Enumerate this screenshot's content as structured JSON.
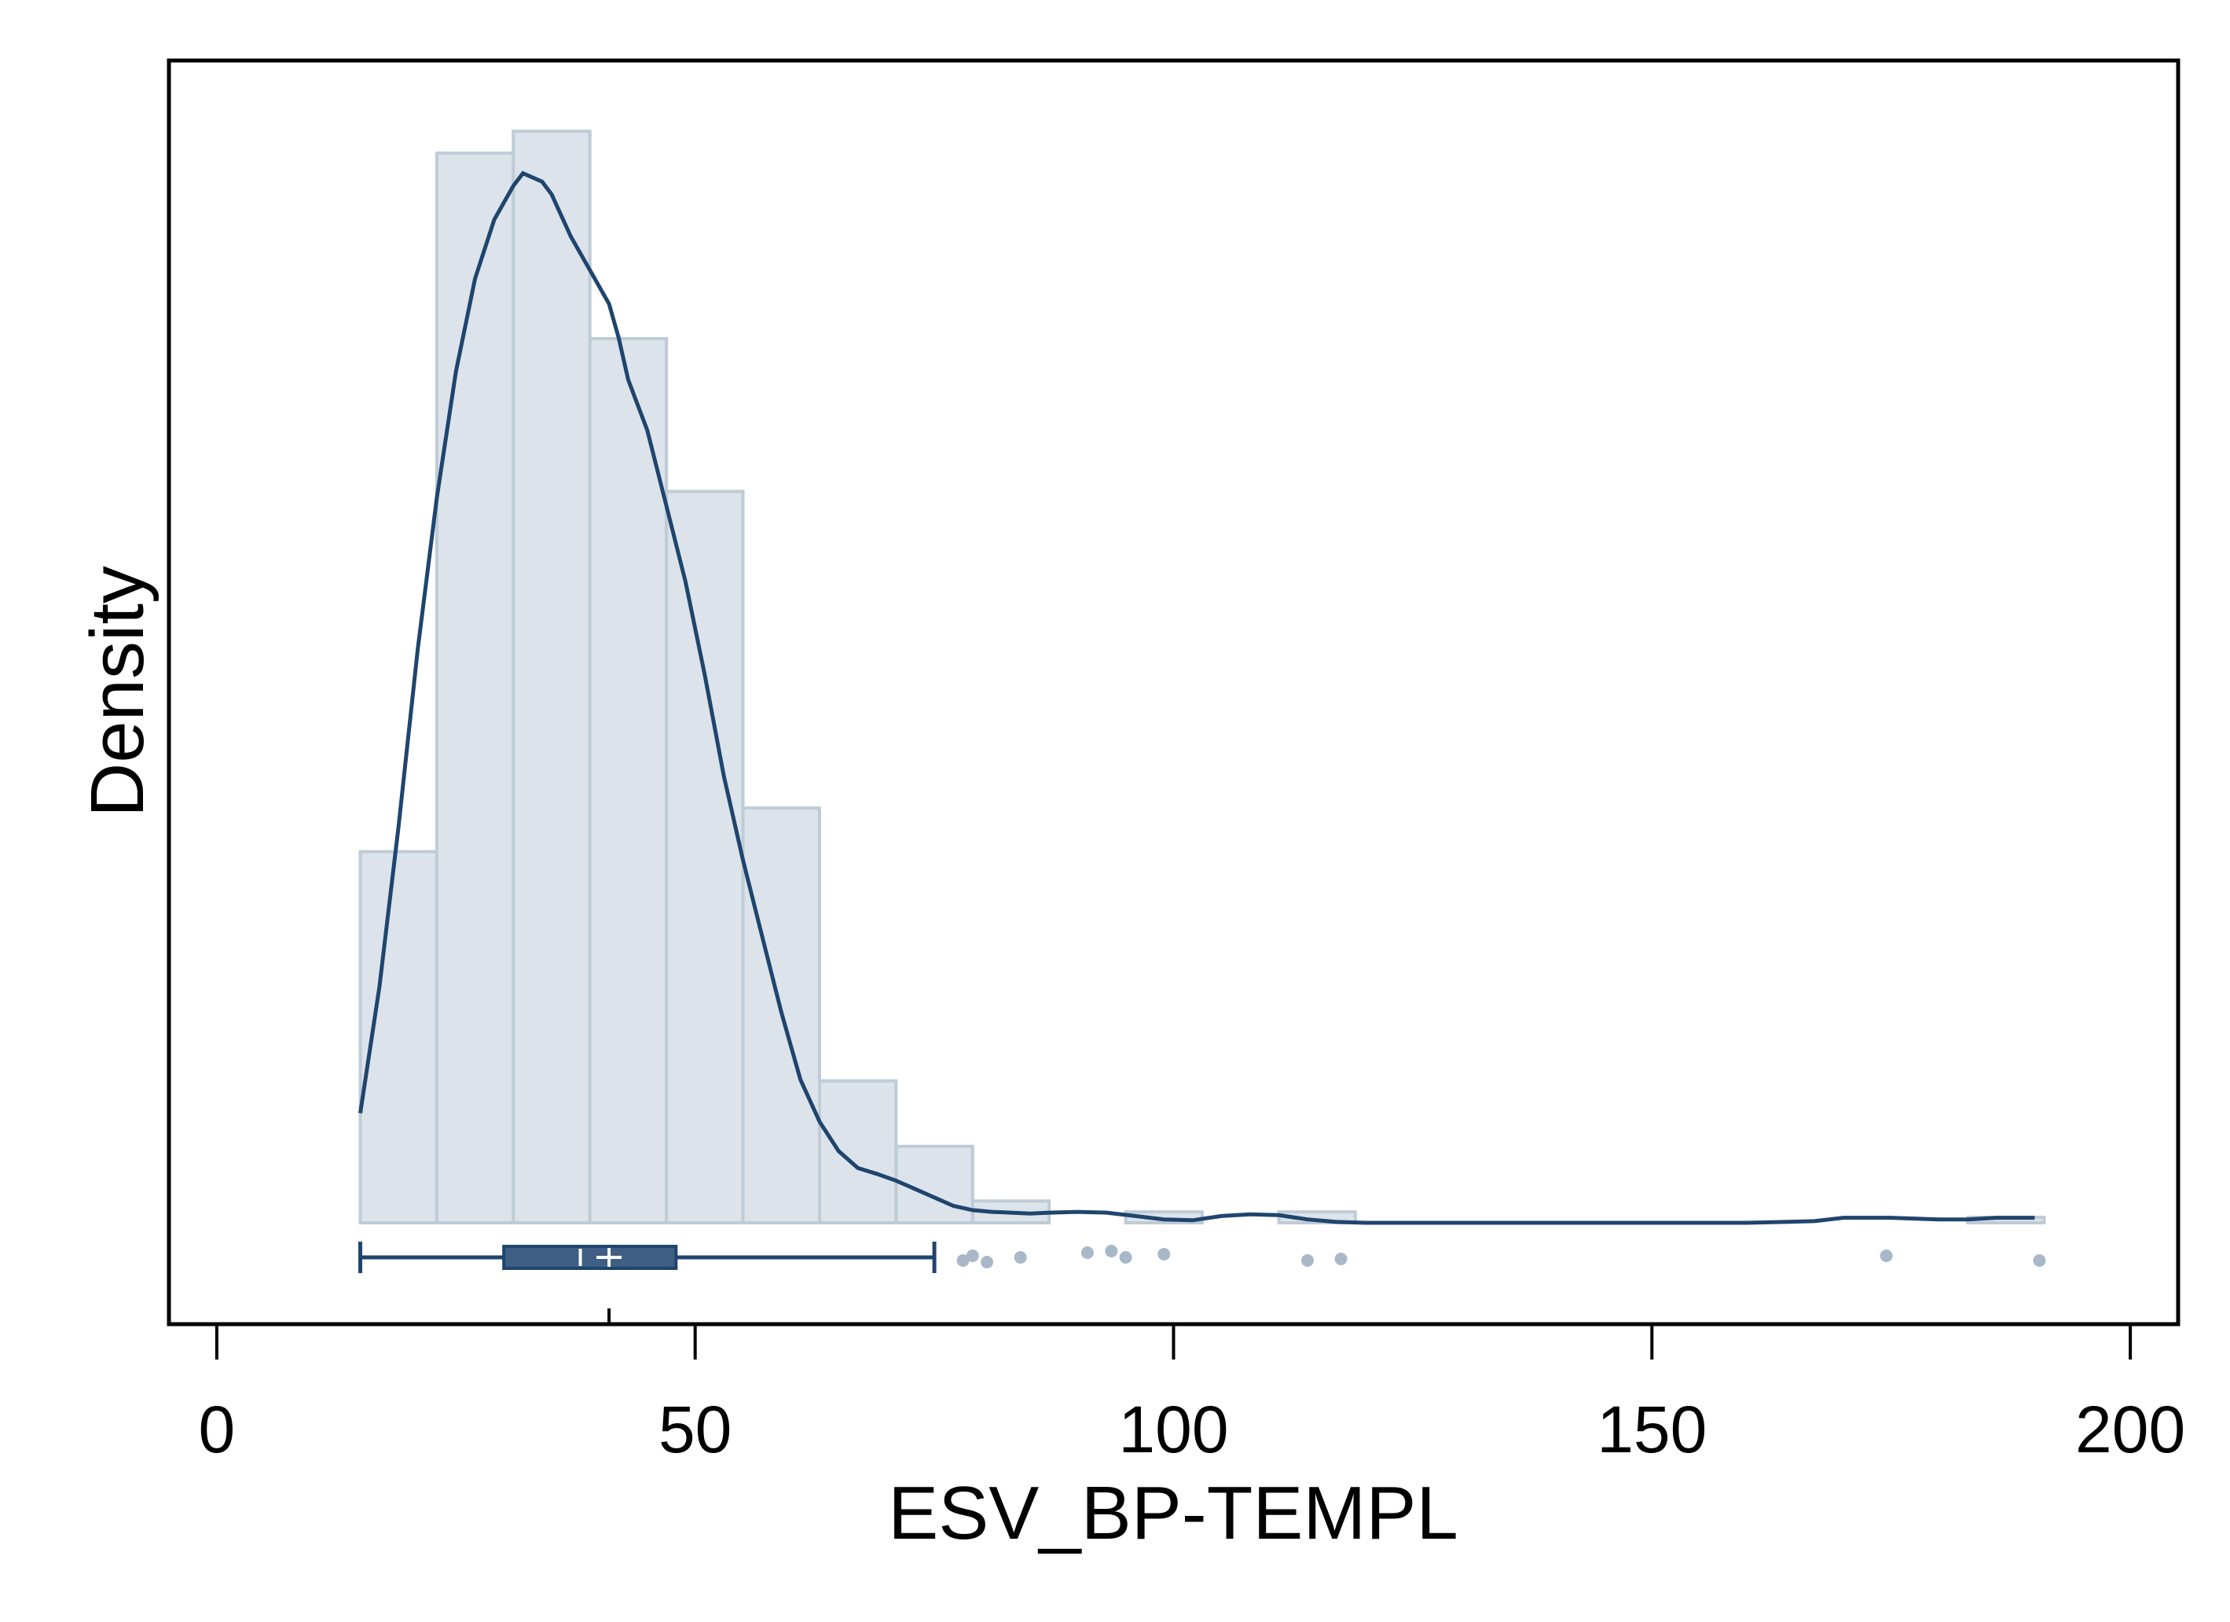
{
  "chart_data": {
    "type": "histogram",
    "xlabel": "ESV_BP-TEMPL",
    "ylabel": "Density",
    "xlim": [
      -5,
      205
    ],
    "x_ticks": [
      0,
      50,
      100,
      150,
      200
    ],
    "y_ticks_shown": false,
    "grid": false,
    "legend": "none",
    "histogram": {
      "bin_edges": [
        15,
        23,
        31,
        39,
        47,
        55,
        63,
        71,
        79,
        87,
        95,
        103,
        111,
        119,
        127,
        135,
        143,
        151,
        159,
        167,
        175,
        183,
        191
      ],
      "relative_heights": [
        0.34,
        0.98,
        1.0,
        0.81,
        0.67,
        0.38,
        0.13,
        0.07,
        0.02,
        0.0,
        0.01,
        0.0,
        0.01,
        0.0,
        0.0,
        0.0,
        0.0,
        0.0,
        0.0,
        0.0,
        0.0,
        0.005
      ]
    },
    "density_curve": {
      "x": [
        15,
        17,
        19,
        21,
        23,
        25,
        27,
        29,
        31,
        32,
        33,
        34,
        35,
        37,
        39,
        41,
        42,
        43,
        45,
        47,
        49,
        51,
        53,
        55,
        57,
        59,
        61,
        63,
        65,
        67,
        69,
        71,
        73,
        75,
        77,
        79,
        81,
        83,
        85,
        87,
        90,
        93,
        96,
        99,
        102,
        105,
        108,
        111,
        114,
        117,
        120,
        123,
        126,
        130,
        140,
        150,
        160,
        167,
        170,
        175,
        180,
        183,
        186,
        190
      ],
      "y": [
        0.13,
        0.28,
        0.47,
        0.68,
        0.86,
        1.01,
        1.12,
        1.19,
        1.23,
        1.245,
        1.24,
        1.235,
        1.22,
        1.17,
        1.13,
        1.09,
        1.05,
        1.0,
        0.94,
        0.85,
        0.76,
        0.65,
        0.53,
        0.43,
        0.34,
        0.25,
        0.17,
        0.12,
        0.085,
        0.065,
        0.058,
        0.05,
        0.04,
        0.03,
        0.02,
        0.015,
        0.013,
        0.012,
        0.011,
        0.012,
        0.013,
        0.012,
        0.008,
        0.004,
        0.003,
        0.008,
        0.01,
        0.009,
        0.004,
        0.001,
        0.0,
        0.0,
        0.0,
        0.0,
        0.0,
        0.0,
        0.0,
        0.002,
        0.006,
        0.006,
        0.004,
        0.004,
        0.006,
        0.006
      ],
      "y_max": 1.32
    },
    "boxplot": {
      "whisker_low": 15,
      "q1": 30,
      "median": 38,
      "q3": 48,
      "whisker_high": 75,
      "mean": 41,
      "outliers": [
        78,
        79,
        80.5,
        84,
        91,
        93.5,
        95,
        99,
        114,
        117.5,
        174.5,
        190.5
      ]
    },
    "colors": {
      "bar_fill": "#dce3ea",
      "bar_stroke": "#bfcbd6",
      "curve": "#1f456e",
      "box_fill": "#3e5f83",
      "outlier": "#a8b8c9",
      "frame": "#000000"
    }
  }
}
